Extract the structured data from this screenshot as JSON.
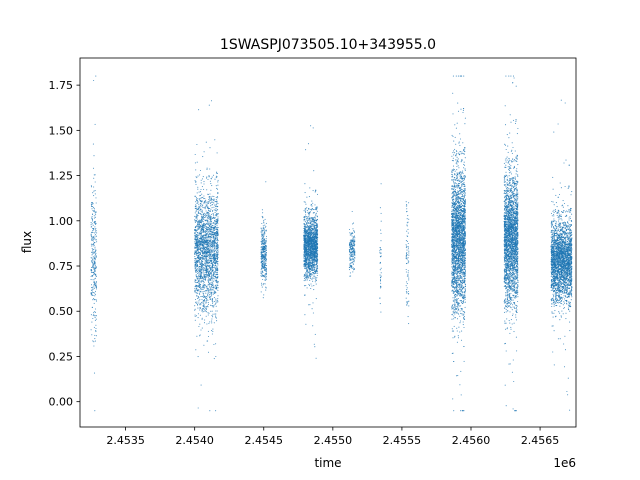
{
  "chart_data": {
    "type": "scatter",
    "title": "1SWASPJ073505.10+343955.0",
    "xlabel": "time",
    "ylabel": "flux",
    "x_offset_label": "1e6",
    "xlim": [
      2453170,
      2456760
    ],
    "ylim": [
      -0.14,
      1.9
    ],
    "x_ticks": [
      2453500,
      2454000,
      2454500,
      2455000,
      2455500,
      2456000,
      2456500
    ],
    "x_tick_labels": [
      "2.4535",
      "2.4540",
      "2.4545",
      "2.4550",
      "2.4555",
      "2.4560",
      "2.4565"
    ],
    "y_ticks": [
      0.0,
      0.25,
      0.5,
      0.75,
      1.0,
      1.25,
      1.5,
      1.75
    ],
    "y_tick_labels": [
      "0.00",
      "0.25",
      "0.50",
      "0.75",
      "1.00",
      "1.25",
      "1.50",
      "1.75"
    ],
    "grid": false,
    "marker_color": "#1f77b4",
    "series": [
      {
        "observing_seasons": [
          {
            "x": [
              2453250,
              2453290
            ],
            "center": 0.8,
            "spread": 0.35,
            "count": 300
          },
          {
            "x": [
              2454000,
              2454170
            ],
            "center": 0.83,
            "spread": 0.3,
            "count": 2200
          },
          {
            "x": [
              2454480,
              2454520
            ],
            "center": 0.82,
            "spread": 0.15,
            "count": 350
          },
          {
            "x": [
              2454790,
              2454890
            ],
            "center": 0.86,
            "spread": 0.15,
            "count": 1800
          },
          {
            "x": [
              2455120,
              2455160
            ],
            "center": 0.85,
            "spread": 0.1,
            "count": 200
          },
          {
            "x": [
              2455340,
              2455350
            ],
            "center": 0.75,
            "spread": 0.25,
            "count": 40
          },
          {
            "x": [
              2455530,
              2455550
            ],
            "center": 0.8,
            "spread": 0.3,
            "count": 80
          },
          {
            "x": [
              2455860,
              2455960
            ],
            "center": 0.9,
            "spread": 0.35,
            "count": 2600
          },
          {
            "x": [
              2456240,
              2456340
            ],
            "center": 0.9,
            "spread": 0.32,
            "count": 2600
          },
          {
            "x": [
              2456580,
              2456730
            ],
            "center": 0.78,
            "spread": 0.2,
            "count": 2800
          }
        ]
      }
    ]
  }
}
